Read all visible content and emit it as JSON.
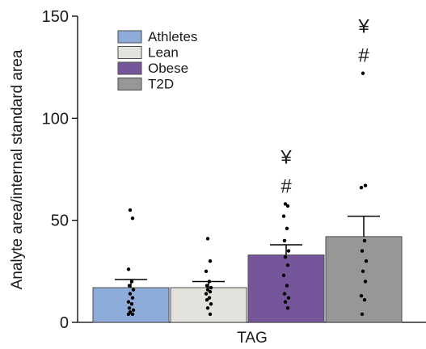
{
  "chart_data": {
    "type": "bar",
    "categories": [
      "TAG"
    ],
    "xlabel": "TAG",
    "ylabel": "Analyte area/internal standard area",
    "ylim": [
      0,
      150
    ],
    "yticks": [
      0,
      50,
      100,
      150
    ],
    "grid": false,
    "legend_position": "top-left",
    "series": [
      {
        "name": "Athletes",
        "color": "#8eacd9",
        "mean": 17,
        "sem": 4,
        "points": [
          55,
          51,
          26,
          20,
          18,
          16,
          14,
          12,
          10,
          9,
          7,
          6,
          5,
          4,
          4
        ],
        "annotations": []
      },
      {
        "name": "Lean",
        "color": "#e3e2dc",
        "mean": 17,
        "sem": 3,
        "points": [
          41,
          30,
          25,
          20,
          18,
          17,
          16,
          15,
          14,
          12,
          11,
          9,
          7,
          4
        ],
        "annotations": []
      },
      {
        "name": "Obese",
        "color": "#76569a",
        "mean": 33,
        "sem": 5,
        "points": [
          58,
          57,
          52,
          46,
          40,
          35,
          32,
          28,
          23,
          18,
          14,
          12,
          10,
          7
        ],
        "annotations": [
          "¥",
          "#"
        ]
      },
      {
        "name": "T2D",
        "color": "#979797",
        "mean": 42,
        "sem": 10,
        "points": [
          122,
          67,
          66,
          40,
          35,
          30,
          25,
          20,
          13,
          11,
          4
        ],
        "annotations": [
          "¥",
          "#"
        ]
      }
    ]
  }
}
